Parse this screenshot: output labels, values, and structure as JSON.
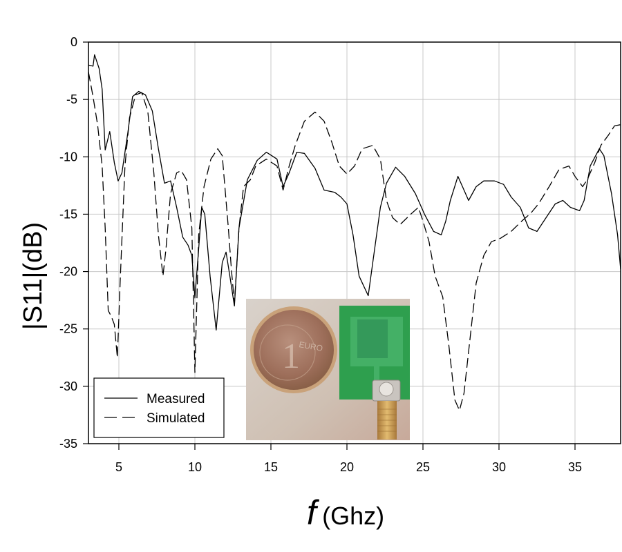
{
  "chart_data": {
    "type": "line",
    "title": "",
    "xlabel": "f (Ghz)",
    "xlabel_symbol": "f",
    "xlabel_unit": "(Ghz)",
    "ylabel": "|S11|(dB)",
    "xlim": [
      3,
      38
    ],
    "ylim": [
      -35,
      0
    ],
    "xticks": [
      5,
      10,
      15,
      20,
      25,
      30,
      35
    ],
    "yticks": [
      0,
      -5,
      -10,
      -15,
      -20,
      -25,
      -30,
      -35
    ],
    "grid": true,
    "legend_position": "lower-left",
    "series": [
      {
        "name": "Measured",
        "style": "solid",
        "x": [
          3.0,
          3.3,
          3.4,
          3.7,
          3.9,
          4.1,
          4.4,
          4.7,
          4.95,
          5.2,
          5.6,
          5.9,
          6.3,
          6.75,
          7.2,
          7.6,
          8.0,
          8.4,
          8.8,
          9.2,
          9.55,
          9.8,
          10.0,
          10.25,
          10.45,
          10.65,
          11.0,
          11.4,
          11.8,
          12.05,
          12.3,
          12.6,
          12.9,
          13.45,
          14.1,
          14.7,
          15.4,
          15.8,
          16.2,
          16.7,
          17.2,
          17.9,
          18.5,
          19.2,
          19.6,
          20.0,
          20.4,
          20.8,
          21.4,
          21.7,
          22.2,
          22.6,
          23.2,
          23.8,
          24.5,
          25.1,
          25.7,
          26.2,
          26.5,
          26.8,
          27.3,
          27.6,
          28.0,
          28.5,
          29.0,
          29.7,
          30.3,
          30.8,
          31.4,
          31.95,
          32.5,
          33.1,
          33.7,
          34.2,
          34.7,
          35.3,
          35.6,
          36.0,
          36.6,
          36.9,
          37.4,
          37.8,
          38.0
        ],
        "values": [
          -2.0,
          -2.1,
          -1.1,
          -2.3,
          -4.1,
          -9.4,
          -7.8,
          -10.5,
          -12.1,
          -11.4,
          -7.8,
          -4.75,
          -4.3,
          -4.6,
          -6.0,
          -9.3,
          -12.3,
          -12.1,
          -14.4,
          -17.0,
          -17.7,
          -18.6,
          -22.3,
          -18.0,
          -14.4,
          -15.0,
          -20.4,
          -25.1,
          -19.2,
          -18.3,
          -20.4,
          -23.0,
          -16.2,
          -12.0,
          -10.3,
          -9.6,
          -10.2,
          -12.6,
          -11.4,
          -9.6,
          -9.7,
          -11.0,
          -12.9,
          -13.1,
          -13.5,
          -14.1,
          -16.8,
          -20.4,
          -22.1,
          -19.2,
          -14.4,
          -12.3,
          -10.9,
          -11.7,
          -13.2,
          -15.0,
          -16.5,
          -16.8,
          -15.6,
          -13.8,
          -11.7,
          -12.6,
          -13.8,
          -12.6,
          -12.1,
          -12.1,
          -12.4,
          -13.5,
          -14.4,
          -16.2,
          -16.5,
          -15.3,
          -14.1,
          -13.8,
          -14.4,
          -14.7,
          -13.8,
          -10.8,
          -9.3,
          -9.9,
          -13.2,
          -16.8,
          -19.8
        ]
      },
      {
        "name": "Simulated",
        "style": "dashed",
        "x": [
          3.0,
          3.3,
          3.6,
          3.9,
          4.1,
          4.3,
          4.5,
          4.7,
          4.9,
          5.1,
          5.4,
          5.7,
          6.1,
          6.5,
          6.9,
          7.3,
          7.6,
          7.9,
          8.1,
          8.4,
          8.8,
          9.1,
          9.45,
          9.8,
          10.0,
          10.25,
          10.6,
          11.05,
          11.5,
          11.8,
          12.2,
          12.4,
          12.6,
          12.9,
          13.2,
          13.65,
          14.0,
          14.7,
          15.4,
          15.8,
          16.2,
          16.6,
          17.2,
          17.9,
          18.5,
          19.0,
          19.5,
          20.0,
          20.5,
          21.0,
          21.7,
          22.2,
          22.6,
          23.0,
          23.5,
          24.2,
          24.7,
          25.0,
          25.4,
          25.8,
          26.3,
          26.7,
          27.1,
          27.4,
          27.7,
          28.1,
          28.5,
          29.0,
          29.5,
          30.1,
          30.8,
          31.5,
          32.1,
          32.6,
          33.3,
          33.95,
          34.6,
          35.0,
          35.5,
          35.8,
          36.3,
          36.7,
          37.2,
          37.6,
          38.0
        ],
        "values": [
          -2.6,
          -4.75,
          -7.2,
          -10.8,
          -16.2,
          -23.4,
          -23.9,
          -24.6,
          -27.5,
          -20.4,
          -10.8,
          -6.6,
          -4.6,
          -4.4,
          -6.0,
          -11.4,
          -16.8,
          -20.4,
          -18.0,
          -13.2,
          -11.4,
          -11.2,
          -12.0,
          -16.2,
          -28.8,
          -16.8,
          -12.6,
          -10.2,
          -9.3,
          -9.9,
          -16.2,
          -19.8,
          -22.8,
          -16.2,
          -12.6,
          -12.0,
          -10.8,
          -10.2,
          -10.8,
          -12.9,
          -10.8,
          -9.0,
          -6.9,
          -6.1,
          -6.9,
          -8.7,
          -10.8,
          -11.5,
          -10.8,
          -9.3,
          -9.0,
          -10.2,
          -13.8,
          -15.3,
          -15.9,
          -15.0,
          -14.4,
          -15.6,
          -17.4,
          -20.4,
          -22.2,
          -26.4,
          -31.2,
          -32.1,
          -30.6,
          -25.8,
          -21.0,
          -18.6,
          -17.4,
          -17.1,
          -16.5,
          -15.6,
          -14.9,
          -14.1,
          -12.6,
          -11.1,
          -10.8,
          -11.7,
          -12.6,
          -12.0,
          -10.5,
          -9.0,
          -8.1,
          -7.3,
          -7.2
        ]
      }
    ],
    "legend": [
      {
        "label": "Measured",
        "style": "solid"
      },
      {
        "label": "Simulated",
        "style": "dashed"
      }
    ],
    "annotations": [
      {
        "type": "inset-photo",
        "description": "Photo of fabricated antenna (green PCB with square patch and SMA connector) next to a 1 euro coin"
      }
    ]
  },
  "axes": {
    "y_label": "|S11|(dB)",
    "x_label_symbol": "f",
    "x_label_unit": "(Ghz)",
    "y_tick_labels": [
      "0",
      "-5",
      "-10",
      "-15",
      "-20",
      "-25",
      "-30",
      "-35"
    ],
    "x_tick_labels": [
      "5",
      "10",
      "15",
      "20",
      "25",
      "30",
      "35"
    ]
  },
  "legend": {
    "items": [
      {
        "label": "Measured"
      },
      {
        "label": "Simulated"
      }
    ]
  },
  "inset": {
    "coin_label": "1",
    "coin_text": "EURO"
  },
  "colors": {
    "line": "#000000",
    "grid": "#c8c8c8",
    "pcb_green": "#2ea24f",
    "pcb_patch": "#3a9a5a",
    "coin": "#a57a5a",
    "connector_gold": "#c89a4a",
    "background_photo": "#d8cfc6"
  }
}
